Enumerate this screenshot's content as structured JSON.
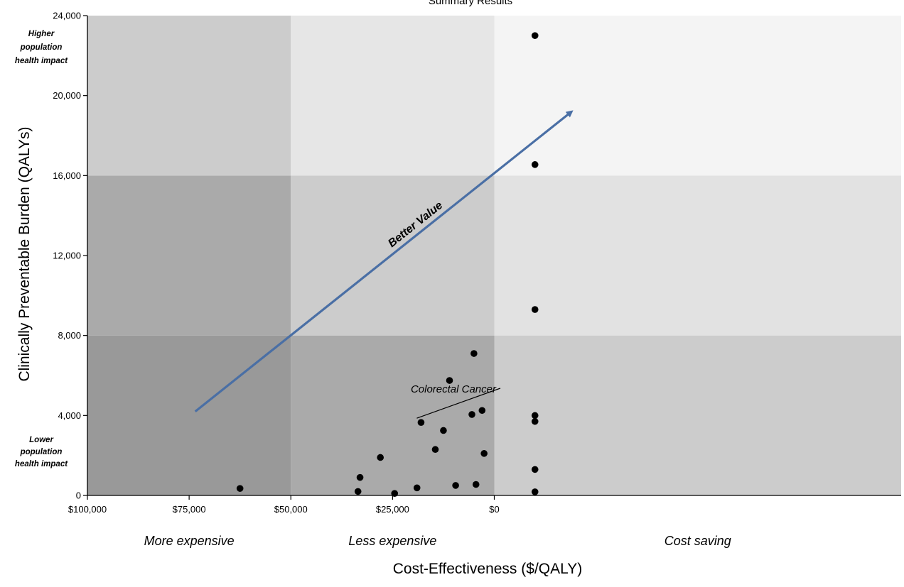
{
  "chart_data": {
    "type": "scatter",
    "title": "Summary Results",
    "xlabel": "Cost-Effectiveness ($/QALY)",
    "ylabel": "Clinically Preventable Burden (QALYs)",
    "x_direction": "reversed",
    "xlim": [
      100000,
      -100000
    ],
    "ylim": [
      0,
      24000
    ],
    "x_ticks": [
      {
        "value": 100000,
        "label": "$100,000"
      },
      {
        "value": 75000,
        "label": "$75,000"
      },
      {
        "value": 50000,
        "label": "$50,000"
      },
      {
        "value": 25000,
        "label": "$25,000"
      },
      {
        "value": 0,
        "label": "$0"
      }
    ],
    "y_ticks": [
      {
        "value": 0,
        "label": "0"
      },
      {
        "value": 4000,
        "label": "4,000"
      },
      {
        "value": 8000,
        "label": "8,000"
      },
      {
        "value": 12000,
        "label": "12,000"
      },
      {
        "value": 16000,
        "label": "16,000"
      },
      {
        "value": 20000,
        "label": "20,000"
      },
      {
        "value": 24000,
        "label": "24,000"
      }
    ],
    "regions": {
      "x_bounds": [
        100000,
        50000,
        0,
        -100000
      ],
      "y_bounds": [
        0,
        8000,
        16000,
        24000
      ],
      "colors": [
        [
          "#999999",
          "#aaaaaa",
          "#cccccc"
        ],
        [
          "#aaaaaa",
          "#cccccc",
          "#e2e2e2"
        ],
        [
          "#cccccc",
          "#e6e6e6",
          "#f4f4f4"
        ]
      ]
    },
    "x_region_labels": [
      "More expensive",
      "Less expensive",
      "Cost saving"
    ],
    "y_notes": {
      "high": [
        "Higher",
        "population",
        "health impact"
      ],
      "low": [
        "Lower",
        "population",
        "health impact"
      ]
    },
    "points": [
      {
        "x": 62500,
        "y": 350
      },
      {
        "x": 33500,
        "y": 200
      },
      {
        "x": 33000,
        "y": 900
      },
      {
        "x": 28000,
        "y": 1900
      },
      {
        "x": 24500,
        "y": 100
      },
      {
        "x": 19000,
        "y": 380
      },
      {
        "x": 18000,
        "y": 3650
      },
      {
        "x": 14500,
        "y": 2300
      },
      {
        "x": 12500,
        "y": 3250
      },
      {
        "x": 11000,
        "y": 5750
      },
      {
        "x": 9500,
        "y": 500
      },
      {
        "x": 5500,
        "y": 4050
      },
      {
        "x": 5000,
        "y": 7100
      },
      {
        "x": 4500,
        "y": 550
      },
      {
        "x": 3000,
        "y": 4250
      },
      {
        "x": 2500,
        "y": 2100
      },
      {
        "x": -10000,
        "y": 23000
      },
      {
        "x": -10000,
        "y": 16550
      },
      {
        "x": -10000,
        "y": 9300
      },
      {
        "x": -10000,
        "y": 4000
      },
      {
        "x": -10000,
        "y": 3700
      },
      {
        "x": -10000,
        "y": 1300
      },
      {
        "x": -10000,
        "y": 180
      }
    ],
    "annotation": {
      "label": "Colorectal Cancer",
      "x": 18000,
      "y": 3650
    },
    "arrow": {
      "label": "Better Value",
      "from": {
        "x": 73500,
        "y": 4200
      },
      "to": {
        "x": -19000,
        "y": 19200
      }
    }
  }
}
